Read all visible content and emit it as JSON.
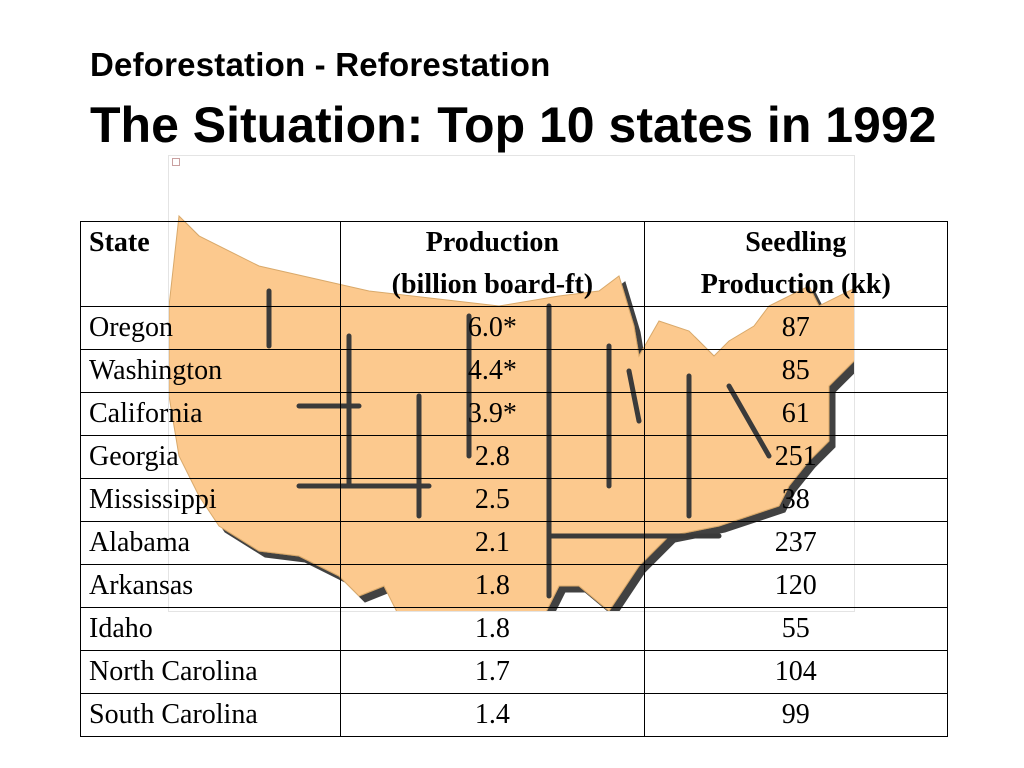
{
  "slide": {
    "subtitle": "Deforestation - Reforestation",
    "title": "The Situation: Top 10 states in 1992"
  },
  "table": {
    "headers": {
      "state": "State",
      "production_line1": "Production",
      "production_line2": "(billion board-ft)",
      "seedling_line1": "Seedling",
      "seedling_line2": "Production (kk)"
    },
    "rows": [
      {
        "state": "Oregon",
        "production": "6.0*",
        "seedling": "87"
      },
      {
        "state": "Washington",
        "production": "4.4*",
        "seedling": "85"
      },
      {
        "state": "California",
        "production": "3.9*",
        "seedling": "61"
      },
      {
        "state": "Georgia",
        "production": "2.8",
        "seedling": "251"
      },
      {
        "state": "Mississippi",
        "production": "2.5",
        "seedling": "38"
      },
      {
        "state": "Alabama",
        "production": "2.1",
        "seedling": "237"
      },
      {
        "state": "Arkansas",
        "production": "1.8",
        "seedling": "120"
      },
      {
        "state": "Idaho",
        "production": "1.8",
        "seedling": "55"
      },
      {
        "state": "North Carolina",
        "production": "1.7",
        "seedling": "104"
      },
      {
        "state": "South Carolina",
        "production": "1.4",
        "seedling": "99"
      }
    ]
  },
  "colors": {
    "map_fill": "#fcc98e",
    "map_outline": "#3a3a3a"
  },
  "icons": {
    "background": "us-map-image"
  }
}
